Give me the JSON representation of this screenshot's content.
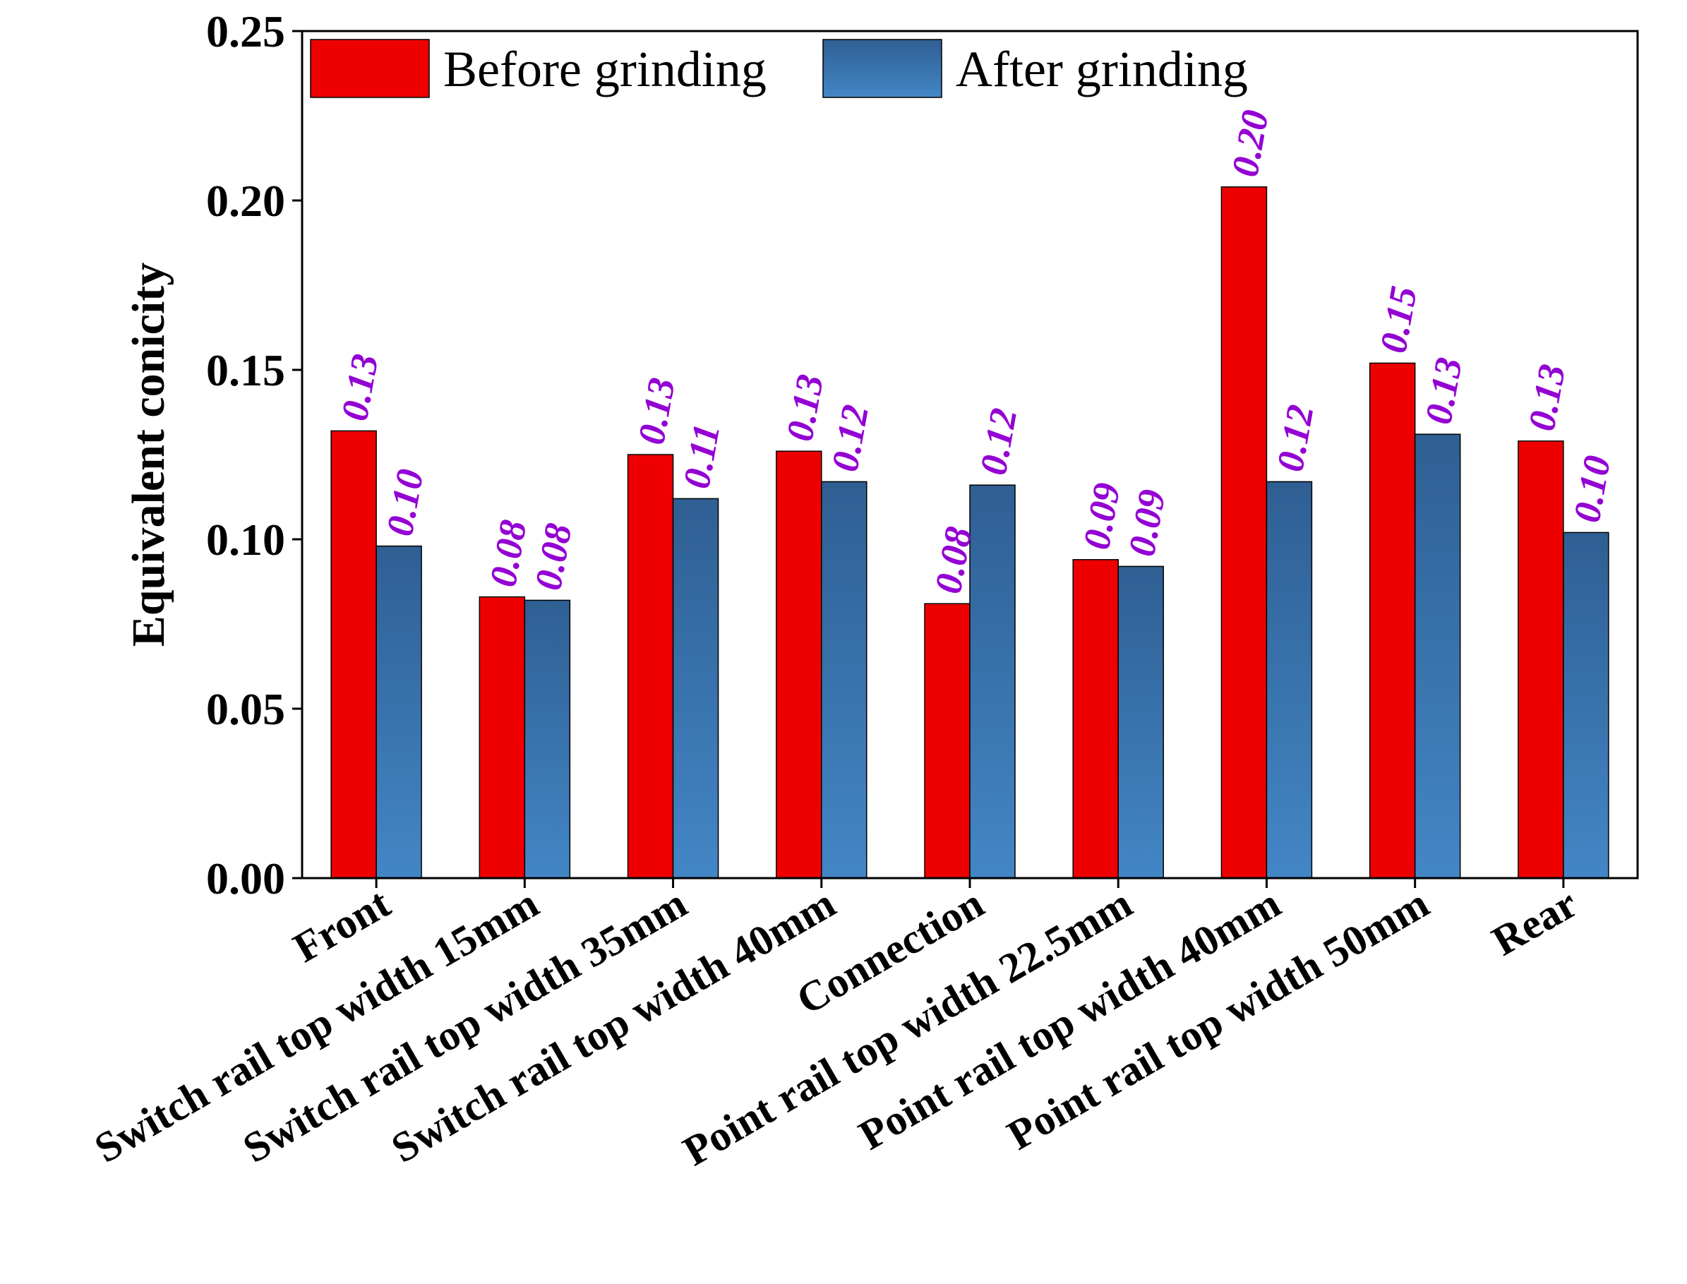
{
  "chart_data": {
    "type": "bar",
    "title": "",
    "xlabel": "",
    "ylabel": "Equivalent conicity",
    "ylim": [
      0,
      0.25
    ],
    "yticks": [
      "0.00",
      "0.05",
      "0.10",
      "0.15",
      "0.20",
      "0.25"
    ],
    "grid": false,
    "legend_position": "top-left",
    "categories": [
      "Front",
      "Switch rail top width 15mm",
      "Switch rail top width 35mm",
      "Switch rail top width 40mm",
      "Connection",
      "Point rail top width 22.5mm",
      "Point rail top width 40mm",
      "Point rail top width 50mm",
      "Rear"
    ],
    "series": [
      {
        "name": "Before grinding",
        "color": "#ee0000",
        "values": [
          0.132,
          0.083,
          0.125,
          0.126,
          0.081,
          0.094,
          0.204,
          0.152,
          0.129
        ],
        "labels": [
          "0.13",
          "0.08",
          "0.13",
          "0.13",
          "0.08",
          "0.09",
          "0.20",
          "0.15",
          "0.13"
        ]
      },
      {
        "name": "After grinding",
        "color": "#3a6fa8",
        "values": [
          0.098,
          0.082,
          0.112,
          0.117,
          0.116,
          0.092,
          0.117,
          0.131,
          0.102
        ],
        "labels": [
          "0.10",
          "0.08",
          "0.11",
          "0.12",
          "0.12",
          "0.09",
          "0.12",
          "0.13",
          "0.10"
        ]
      }
    ],
    "label_color": "#9400d3"
  }
}
